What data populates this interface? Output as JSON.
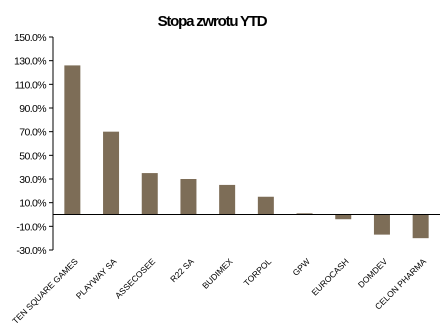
{
  "chart_data": {
    "type": "bar",
    "title": "Stopa zwrotu YTD",
    "categories": [
      "TEN SQUARE GAMES",
      "PLAYWAY SA",
      "ASSECOSEE",
      "R22 SA",
      "BUDIMEX",
      "TORPOL",
      "GPW",
      "EUROCASH",
      "DOMDEV",
      "CELON PHARMA"
    ],
    "values": [
      126,
      70,
      35,
      30,
      25,
      15,
      1,
      -4,
      -17,
      -20
    ],
    "yticks": [
      "150.0%",
      "130.0%",
      "110.0%",
      "90.0%",
      "70.0%",
      "50.0%",
      "30.0%",
      "10.0%",
      "-10.0%",
      "-30.0%"
    ],
    "ylim": [
      -30,
      150
    ],
    "ylabel": "",
    "xlabel": "",
    "grid": false,
    "bar_color": "#7d6d57"
  }
}
